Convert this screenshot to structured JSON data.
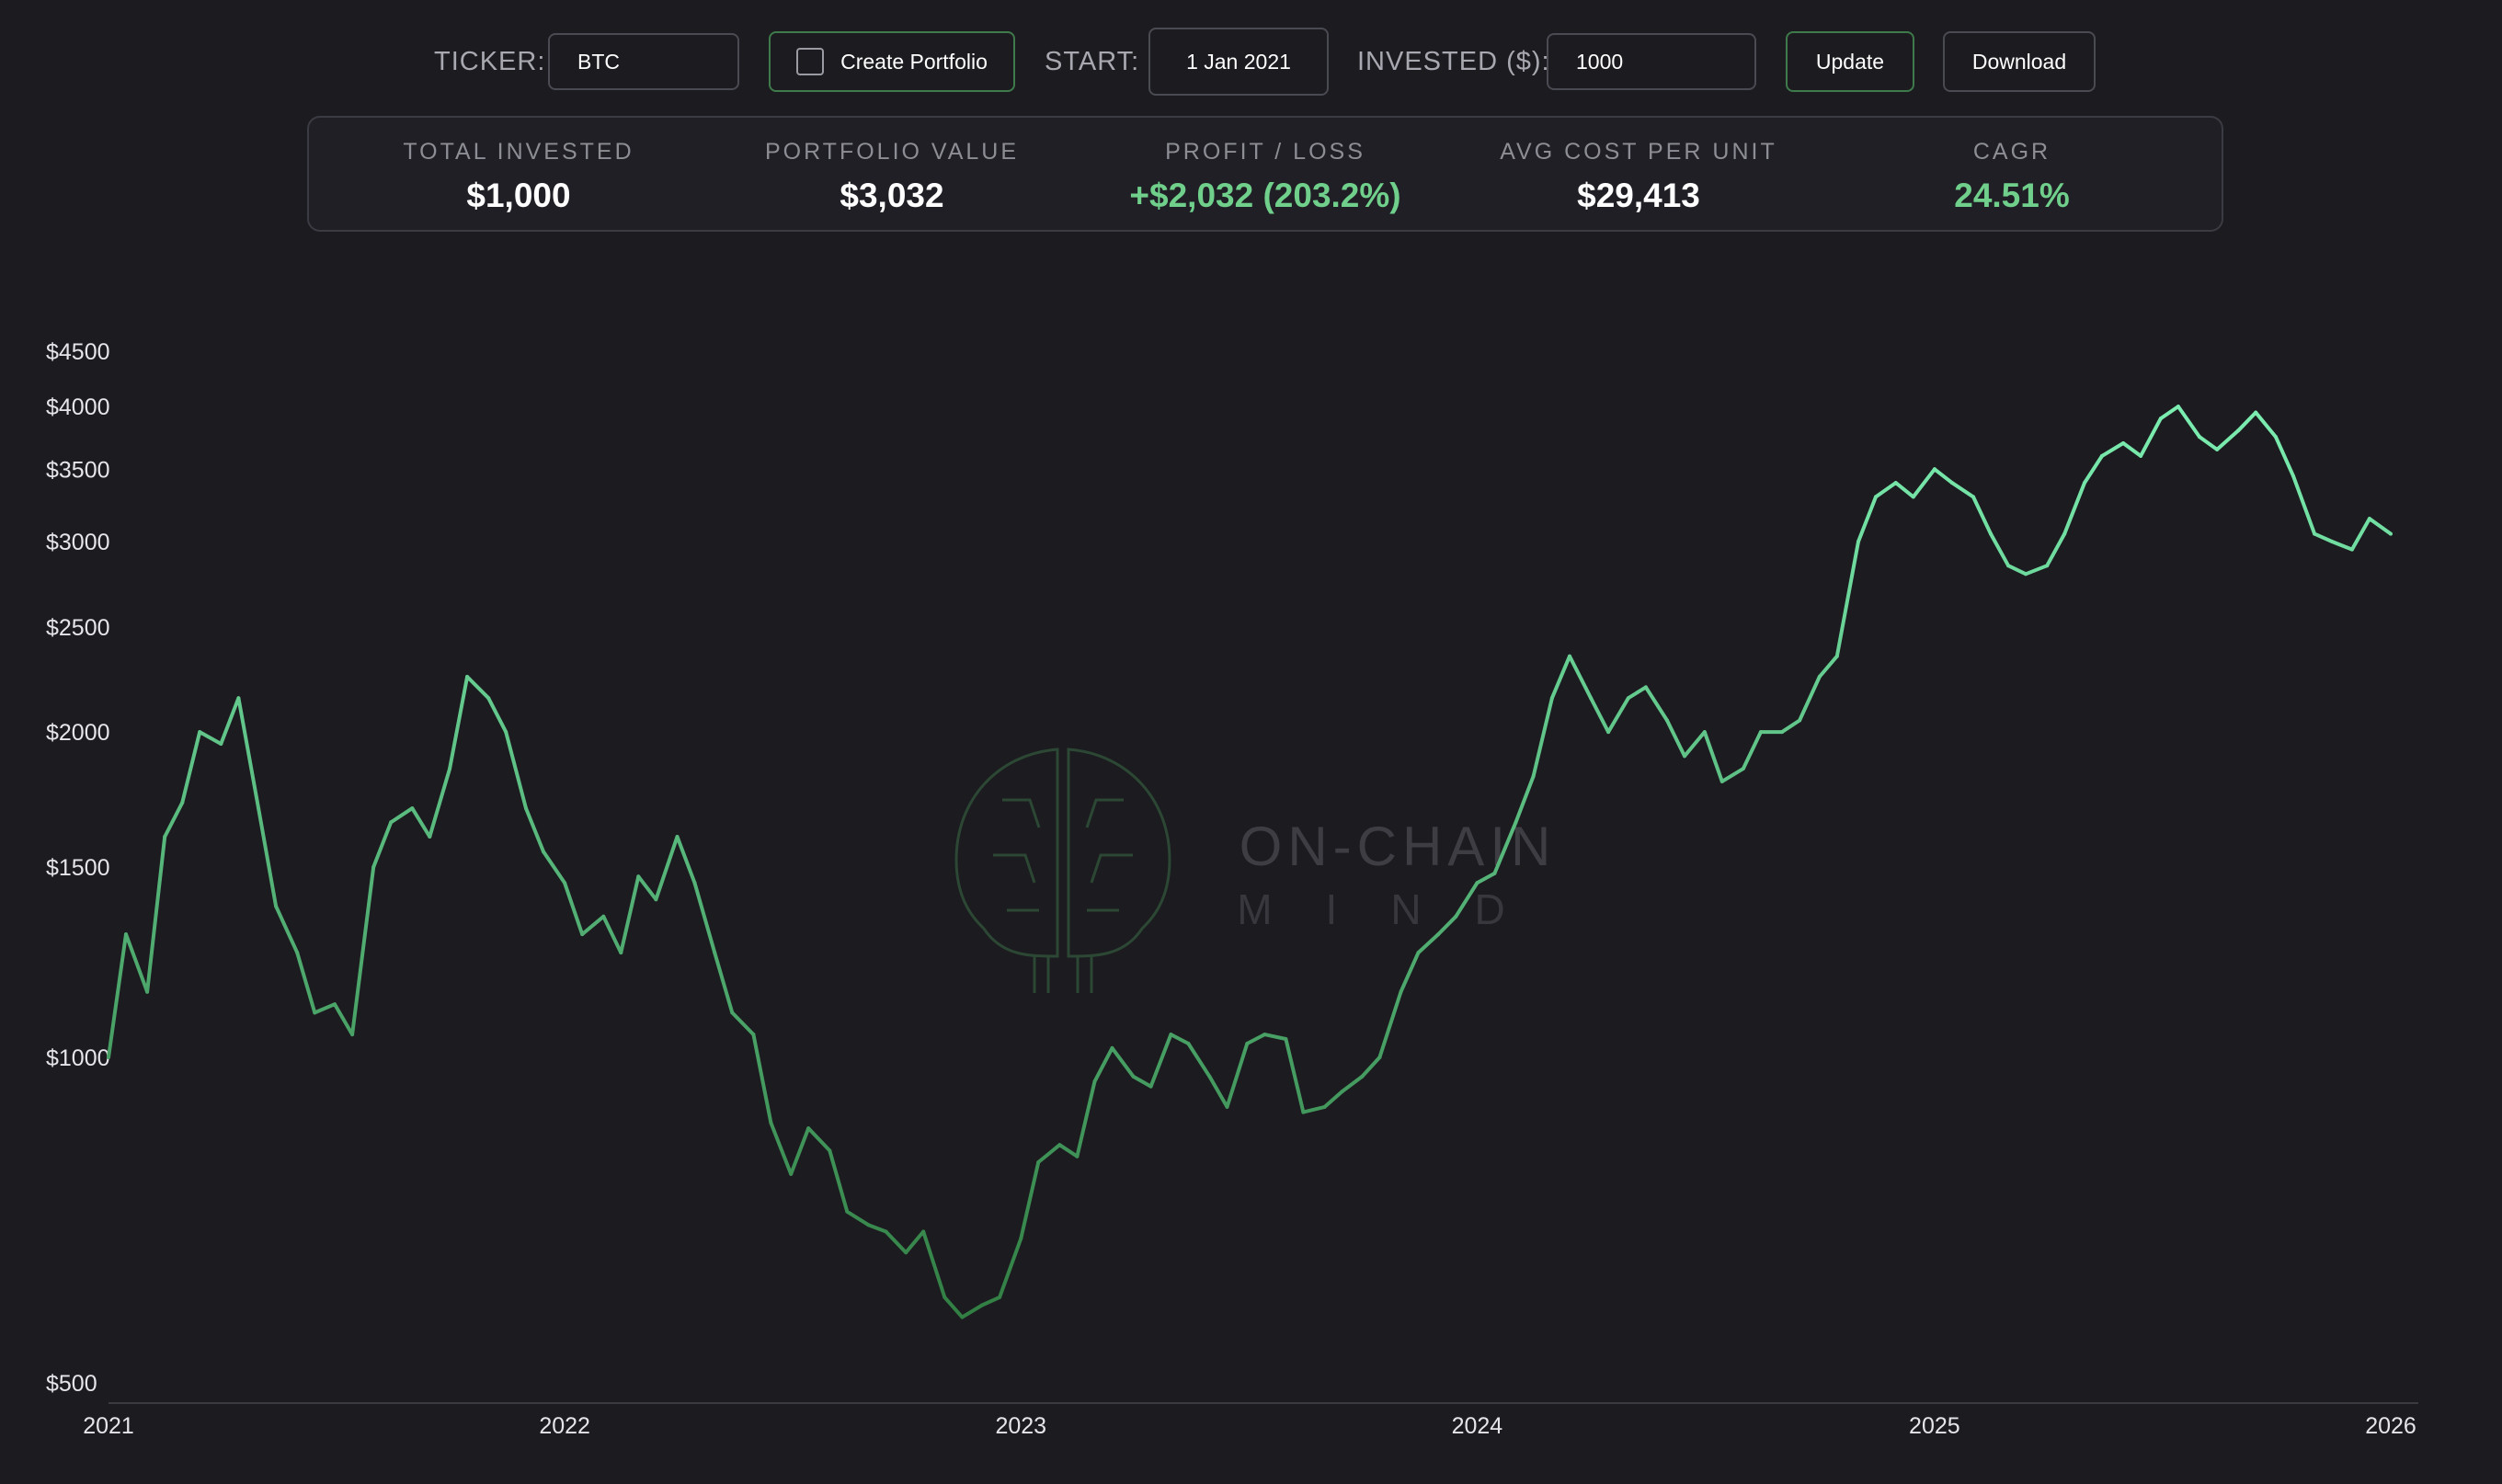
{
  "controls": {
    "ticker_label": "TICKER:",
    "ticker_value": "BTC",
    "create_portfolio_label": "Create Portfolio",
    "start_label": "START:",
    "start_value": "1 Jan 2021",
    "invested_label": "INVESTED ($):",
    "invested_value": "1000",
    "update_label": "Update",
    "download_label": "Download"
  },
  "summary": {
    "total_invested": {
      "title": "TOTAL INVESTED",
      "value": "$1,000"
    },
    "portfolio_value": {
      "title": "PORTFOLIO VALUE",
      "value": "$3,032"
    },
    "profit_loss": {
      "title": "PROFIT / LOSS",
      "value": "+$2,032 (203.2%)"
    },
    "avg_cost": {
      "title": "AVG COST PER UNIT",
      "value": "$29,413"
    },
    "cagr": {
      "title": "CAGR",
      "value": "24.51%"
    }
  },
  "watermark": {
    "line1": "ON-CHAIN",
    "line2": "MIND"
  },
  "colors": {
    "background": "#1b1b20",
    "accent_green": "#6fcf8b",
    "line_low": "#2f7a3f",
    "line_high": "#7ff2b5"
  },
  "chart_data": {
    "type": "line",
    "title": "",
    "xlabel": "",
    "ylabel": "",
    "y_scale": "log",
    "ylim": [
      500,
      4500
    ],
    "xlim": [
      "2021-01-01",
      "2026-01-01"
    ],
    "y_ticks": [
      500,
      1000,
      1500,
      2000,
      2500,
      3000,
      3500,
      4000,
      4500
    ],
    "y_tick_labels": [
      "$500",
      "$1000",
      "$1500",
      "$2000",
      "$2500",
      "$3000",
      "$3500",
      "$4000",
      "$4500"
    ],
    "x_ticks": [
      "2021",
      "2022",
      "2023",
      "2024",
      "2025",
      "2026"
    ],
    "grid": false,
    "legend": "none",
    "series": [
      {
        "x": [
          "2021-01-01",
          "2021-01-15",
          "2021-02-01",
          "2021-02-15",
          "2021-03-01",
          "2021-03-15",
          "2021-04-01",
          "2021-04-15",
          "2021-05-01",
          "2021-05-15",
          "2021-06-01",
          "2021-06-15",
          "2021-07-01",
          "2021-07-15",
          "2021-08-01",
          "2021-08-15",
          "2021-09-01",
          "2021-09-15",
          "2021-10-01",
          "2021-10-15",
          "2021-11-01",
          "2021-11-15",
          "2021-12-01",
          "2021-12-15",
          "2022-01-01",
          "2022-01-15",
          "2022-02-01",
          "2022-02-15",
          "2022-03-01",
          "2022-03-15",
          "2022-04-01",
          "2022-04-15",
          "2022-05-01",
          "2022-05-15",
          "2022-06-01",
          "2022-06-15",
          "2022-07-01",
          "2022-07-15",
          "2022-08-01",
          "2022-08-15",
          "2022-09-01",
          "2022-09-15",
          "2022-10-01",
          "2022-10-15",
          "2022-11-01",
          "2022-11-15",
          "2022-12-01",
          "2022-12-15",
          "2023-01-01",
          "2023-01-15",
          "2023-02-01",
          "2023-02-15",
          "2023-03-01",
          "2023-03-15",
          "2023-04-01",
          "2023-04-15",
          "2023-05-01",
          "2023-05-15",
          "2023-06-01",
          "2023-06-15",
          "2023-07-01",
          "2023-07-15",
          "2023-08-01",
          "2023-08-15",
          "2023-09-01",
          "2023-09-15",
          "2023-10-01",
          "2023-10-15",
          "2023-11-01",
          "2023-11-15",
          "2023-12-01",
          "2023-12-15",
          "2024-01-01",
          "2024-01-15",
          "2024-02-01",
          "2024-02-15",
          "2024-03-01",
          "2024-03-15",
          "2024-04-01",
          "2024-04-15",
          "2024-05-01",
          "2024-05-15",
          "2024-06-01",
          "2024-06-15",
          "2024-07-01",
          "2024-07-15",
          "2024-08-01",
          "2024-08-15",
          "2024-09-01",
          "2024-09-15",
          "2024-10-01",
          "2024-10-15",
          "2024-11-01",
          "2024-11-15",
          "2024-12-01",
          "2024-12-15",
          "2025-01-01",
          "2025-01-15",
          "2025-02-01",
          "2025-02-15",
          "2025-03-01",
          "2025-03-15",
          "2025-04-01",
          "2025-04-15",
          "2025-05-01",
          "2025-05-15",
          "2025-06-01",
          "2025-06-15",
          "2025-07-01",
          "2025-07-15",
          "2025-08-01",
          "2025-08-15",
          "2025-09-01",
          "2025-09-15",
          "2025-10-01",
          "2025-10-15",
          "2025-11-01",
          "2025-11-15",
          "2025-12-01",
          "2025-12-15",
          "2026-01-01"
        ],
        "y": [
          1000,
          1300,
          1150,
          1600,
          1720,
          2000,
          1950,
          2150,
          1700,
          1380,
          1250,
          1100,
          1120,
          1050,
          1500,
          1650,
          1700,
          1600,
          1850,
          2250,
          2150,
          2000,
          1700,
          1550,
          1450,
          1300,
          1350,
          1250,
          1470,
          1400,
          1600,
          1450,
          1250,
          1100,
          1050,
          870,
          780,
          860,
          820,
          720,
          700,
          690,
          660,
          690,
          600,
          575,
          590,
          600,
          680,
          800,
          830,
          810,
          950,
          1020,
          960,
          940,
          1050,
          1030,
          960,
          900,
          1030,
          1050,
          1040,
          890,
          900,
          930,
          960,
          1000,
          1150,
          1250,
          1300,
          1350,
          1450,
          1480,
          1650,
          1820,
          2150,
          2350,
          2150,
          2000,
          2150,
          2200,
          2050,
          1900,
          2000,
          1800,
          1850,
          2000,
          2000,
          2050,
          2250,
          2350,
          3000,
          3300,
          3400,
          3300,
          3500,
          3400,
          3300,
          3050,
          2850,
          2800,
          2850,
          3050,
          3400,
          3600,
          3700,
          3600,
          3900,
          4000,
          3750,
          3650,
          3800,
          3950,
          3750,
          3450,
          3050,
          3000,
          2950,
          3150,
          3050
        ]
      }
    ]
  }
}
